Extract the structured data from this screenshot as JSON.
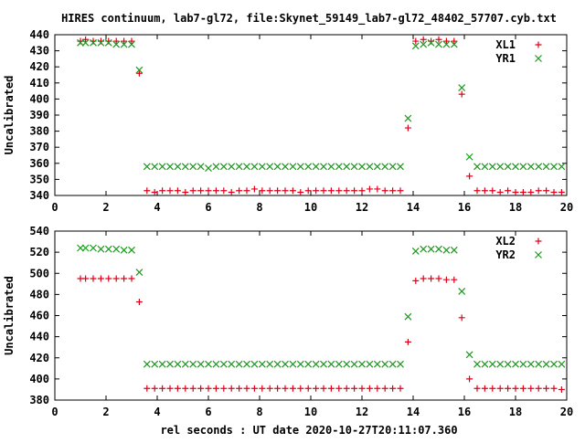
{
  "title": "HIRES continuum, lab7-gl72, file:Skynet_59149_lab7-gl72_48402_57707.cyb.txt",
  "xlabel": "rel seconds : UT date 2020-10-27T20:11:07.360",
  "colors": {
    "red": "#e0001a",
    "green": "#1a9a1a"
  },
  "chart_data": [
    {
      "type": "scatter",
      "title": "",
      "ylabel": "Uncalibrated",
      "xlim": [
        0,
        20
      ],
      "ylim": [
        340,
        440
      ],
      "x_ticks": [
        "0",
        "2",
        "4",
        "6",
        "8",
        "10",
        "12",
        "14",
        "16",
        "18",
        "20"
      ],
      "y_ticks": [
        "340",
        "350",
        "360",
        "370",
        "380",
        "390",
        "400",
        "410",
        "420",
        "430",
        "440"
      ],
      "legend_position": "top-right",
      "series": [
        {
          "name": "XL1",
          "marker": "plus",
          "color": "#e0001a",
          "x": [
            1.0,
            1.2,
            1.5,
            1.8,
            2.1,
            2.4,
            2.7,
            3.0,
            3.3,
            3.6,
            3.9,
            4.2,
            4.5,
            4.8,
            5.1,
            5.4,
            5.7,
            6.0,
            6.3,
            6.6,
            6.9,
            7.2,
            7.5,
            7.8,
            8.1,
            8.4,
            8.7,
            9.0,
            9.3,
            9.6,
            9.9,
            10.2,
            10.5,
            10.8,
            11.1,
            11.4,
            11.7,
            12.0,
            12.3,
            12.6,
            12.9,
            13.2,
            13.5,
            13.8,
            14.1,
            14.4,
            14.7,
            15.0,
            15.3,
            15.6,
            15.9,
            16.2,
            16.5,
            16.8,
            17.1,
            17.4,
            17.7,
            18.0,
            18.3,
            18.6,
            18.9,
            19.2,
            19.5,
            19.8
          ],
          "y": [
            436,
            437,
            436,
            436,
            436,
            436,
            436,
            436,
            416,
            343,
            342,
            343,
            343,
            343,
            342,
            343,
            343,
            343,
            343,
            343,
            342,
            343,
            343,
            344,
            343,
            343,
            343,
            343,
            343,
            342,
            343,
            343,
            343,
            343,
            343,
            343,
            343,
            343,
            344,
            344,
            343,
            343,
            343,
            382,
            436,
            437,
            436,
            437,
            436,
            436,
            403,
            352,
            343,
            343,
            343,
            342,
            343,
            342,
            342,
            342,
            343,
            343,
            342,
            342
          ]
        },
        {
          "name": "YR1",
          "marker": "cross",
          "color": "#1a9a1a",
          "x": [
            1.0,
            1.2,
            1.5,
            1.8,
            2.1,
            2.4,
            2.7,
            3.0,
            3.3,
            3.6,
            3.9,
            4.2,
            4.5,
            4.8,
            5.1,
            5.4,
            5.7,
            6.0,
            6.3,
            6.6,
            6.9,
            7.2,
            7.5,
            7.8,
            8.1,
            8.4,
            8.7,
            9.0,
            9.3,
            9.6,
            9.9,
            10.2,
            10.5,
            10.8,
            11.1,
            11.4,
            11.7,
            12.0,
            12.3,
            12.6,
            12.9,
            13.2,
            13.5,
            13.8,
            14.1,
            14.4,
            14.7,
            15.0,
            15.3,
            15.6,
            15.9,
            16.2,
            16.5,
            16.8,
            17.1,
            17.4,
            17.7,
            18.0,
            18.3,
            18.6,
            18.9,
            19.2,
            19.5,
            19.8
          ],
          "y": [
            435,
            435,
            435,
            435,
            435,
            434,
            434,
            434,
            418,
            358,
            358,
            358,
            358,
            358,
            358,
            358,
            358,
            357,
            358,
            358,
            358,
            358,
            358,
            358,
            358,
            358,
            358,
            358,
            358,
            358,
            358,
            358,
            358,
            358,
            358,
            358,
            358,
            358,
            358,
            358,
            358,
            358,
            358,
            388,
            433,
            434,
            435,
            434,
            434,
            434,
            407,
            364,
            358,
            358,
            358,
            358,
            358,
            358,
            358,
            358,
            358,
            358,
            358,
            358
          ]
        }
      ]
    },
    {
      "type": "scatter",
      "title": "",
      "ylabel": "Uncalibrated",
      "xlim": [
        0,
        20
      ],
      "ylim": [
        380,
        540
      ],
      "x_ticks": [
        "0",
        "2",
        "4",
        "6",
        "8",
        "10",
        "12",
        "14",
        "16",
        "18",
        "20"
      ],
      "y_ticks": [
        "380",
        "400",
        "420",
        "440",
        "460",
        "480",
        "500",
        "520",
        "540"
      ],
      "legend_position": "top-right",
      "series": [
        {
          "name": "XL2",
          "marker": "plus",
          "color": "#e0001a",
          "x": [
            1.0,
            1.2,
            1.5,
            1.8,
            2.1,
            2.4,
            2.7,
            3.0,
            3.3,
            3.6,
            3.9,
            4.2,
            4.5,
            4.8,
            5.1,
            5.4,
            5.7,
            6.0,
            6.3,
            6.6,
            6.9,
            7.2,
            7.5,
            7.8,
            8.1,
            8.4,
            8.7,
            9.0,
            9.3,
            9.6,
            9.9,
            10.2,
            10.5,
            10.8,
            11.1,
            11.4,
            11.7,
            12.0,
            12.3,
            12.6,
            12.9,
            13.2,
            13.5,
            13.8,
            14.1,
            14.4,
            14.7,
            15.0,
            15.3,
            15.6,
            15.9,
            16.2,
            16.5,
            16.8,
            17.1,
            17.4,
            17.7,
            18.0,
            18.3,
            18.6,
            18.9,
            19.2,
            19.5,
            19.8
          ],
          "y": [
            495,
            495,
            495,
            495,
            495,
            495,
            495,
            495,
            473,
            391,
            391,
            391,
            391,
            391,
            391,
            391,
            391,
            391,
            391,
            391,
            391,
            391,
            391,
            391,
            391,
            391,
            391,
            391,
            391,
            391,
            391,
            391,
            391,
            391,
            391,
            391,
            391,
            391,
            391,
            391,
            391,
            391,
            391,
            435,
            493,
            495,
            495,
            495,
            494,
            494,
            458,
            400,
            391,
            391,
            391,
            391,
            391,
            391,
            391,
            391,
            391,
            391,
            391,
            390
          ]
        },
        {
          "name": "YR2",
          "marker": "cross",
          "color": "#1a9a1a",
          "x": [
            1.0,
            1.2,
            1.5,
            1.8,
            2.1,
            2.4,
            2.7,
            3.0,
            3.3,
            3.6,
            3.9,
            4.2,
            4.5,
            4.8,
            5.1,
            5.4,
            5.7,
            6.0,
            6.3,
            6.6,
            6.9,
            7.2,
            7.5,
            7.8,
            8.1,
            8.4,
            8.7,
            9.0,
            9.3,
            9.6,
            9.9,
            10.2,
            10.5,
            10.8,
            11.1,
            11.4,
            11.7,
            12.0,
            12.3,
            12.6,
            12.9,
            13.2,
            13.5,
            13.8,
            14.1,
            14.4,
            14.7,
            15.0,
            15.3,
            15.6,
            15.9,
            16.2,
            16.5,
            16.8,
            17.1,
            17.4,
            17.7,
            18.0,
            18.3,
            18.6,
            18.9,
            19.2,
            19.5,
            19.8
          ],
          "y": [
            524,
            524,
            524,
            523,
            523,
            523,
            522,
            522,
            501,
            414,
            414,
            414,
            414,
            414,
            414,
            414,
            414,
            414,
            414,
            414,
            414,
            414,
            414,
            414,
            414,
            414,
            414,
            414,
            414,
            414,
            414,
            414,
            414,
            414,
            414,
            414,
            414,
            414,
            414,
            414,
            414,
            414,
            414,
            459,
            521,
            523,
            523,
            523,
            522,
            522,
            483,
            423,
            414,
            414,
            414,
            414,
            414,
            414,
            414,
            414,
            414,
            414,
            414,
            414
          ]
        }
      ]
    }
  ]
}
